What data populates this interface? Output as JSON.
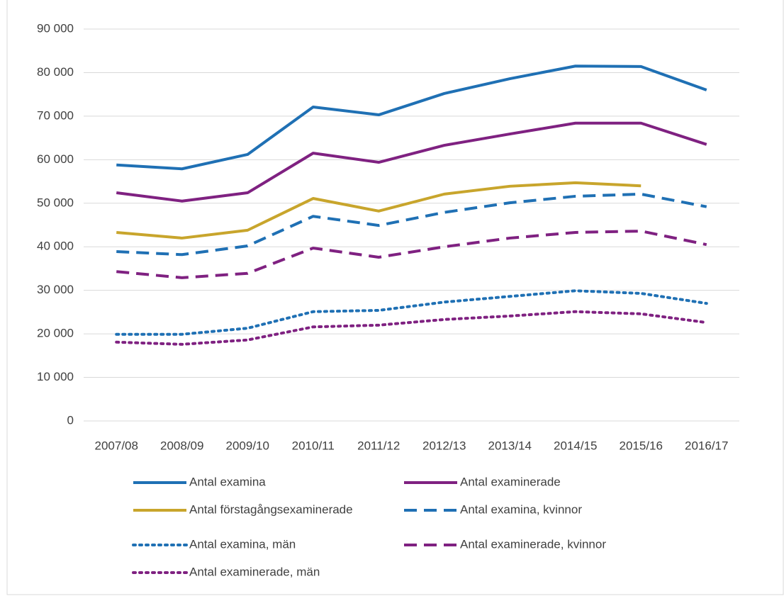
{
  "chart_data": {
    "type": "line",
    "categories": [
      "2007/08",
      "2008/09",
      "2009/10",
      "2010/11",
      "2011/12",
      "2012/13",
      "2013/14",
      "2014/15",
      "2015/16",
      "2016/17"
    ],
    "series": [
      {
        "name": "Antal examina",
        "color": "#1f70b4",
        "dash": "solid",
        "values": [
          58.8,
          57.9,
          61.2,
          72.1,
          70.3,
          75.2,
          78.6,
          81.5,
          81.4,
          76.0
        ]
      },
      {
        "name": "Antal examinerade",
        "color": "#7f2181",
        "dash": "solid",
        "values": [
          52.4,
          50.5,
          52.4,
          61.5,
          59.4,
          63.3,
          65.9,
          68.4,
          68.4,
          63.5
        ]
      },
      {
        "name": "Antal förstagångsexaminerade",
        "color": "#c8a52c",
        "dash": "solid",
        "values": [
          43.3,
          42.0,
          43.8,
          51.1,
          48.2,
          52.1,
          53.9,
          54.7,
          54.0,
          null
        ]
      },
      {
        "name": "Antal examina, kvinnor",
        "color": "#1f70b4",
        "dash": "dashed",
        "values": [
          38.9,
          38.2,
          40.2,
          47.0,
          44.9,
          47.9,
          50.1,
          51.6,
          52.1,
          49.2
        ]
      },
      {
        "name": "Antal examina, män",
        "color": "#1f70b4",
        "dash": "dotted",
        "values": [
          19.9,
          19.9,
          21.3,
          25.1,
          25.4,
          27.3,
          28.6,
          29.9,
          29.3,
          27.0
        ]
      },
      {
        "name": "Antal examinerade, kvinnor",
        "color": "#7f2181",
        "dash": "dashed",
        "values": [
          34.3,
          32.9,
          33.9,
          39.7,
          37.6,
          40.0,
          42.0,
          43.3,
          43.6,
          40.5
        ]
      },
      {
        "name": "Antal examinerade, män",
        "color": "#7f2181",
        "dash": "dotted",
        "values": [
          18.1,
          17.6,
          18.6,
          21.6,
          22.0,
          23.3,
          24.1,
          25.1,
          24.6,
          22.6
        ]
      }
    ],
    "ylim": [
      0,
      90000
    ],
    "yticks": [
      0,
      {
        "value": 10000,
        "label": "10 000"
      },
      {
        "value": 20000,
        "label": "20 000"
      },
      {
        "value": 30000,
        "label": "30 000"
      },
      {
        "value": 40000,
        "label": "40 000"
      },
      {
        "value": 50000,
        "label": "50 000"
      },
      {
        "value": 60000,
        "label": "60 000"
      },
      {
        "value": 70000,
        "label": "70 000"
      },
      {
        "value": 80000,
        "label": "80 000"
      },
      {
        "value": 90000,
        "label": "90 000"
      }
    ],
    "value_unit": 1000,
    "grid": true,
    "legend": "bottom"
  }
}
